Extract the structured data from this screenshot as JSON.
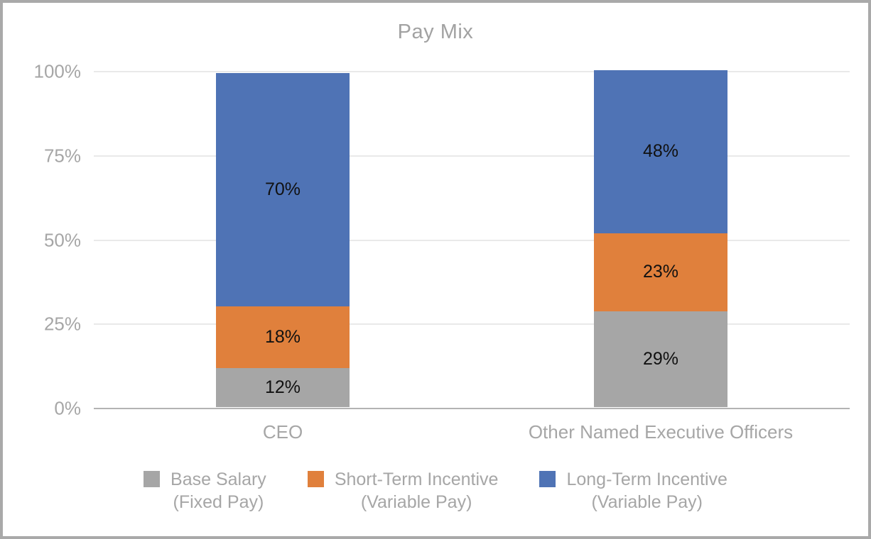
{
  "chart": {
    "title": "Pay Mix"
  },
  "colors": {
    "background": "#ffffff",
    "frame_border": "#a9a9a9",
    "gridline": "#e9e9e9",
    "axis_line": "#b3b3b3",
    "axis_text": "#a6a6a6",
    "title_text": "#a2a2a2",
    "data_label_text": "#111111",
    "base_salary": "#a6a6a6",
    "short_term_incentive": "#e0803c",
    "long_term_incentive": "#4f73b5"
  },
  "chart_data": {
    "type": "bar",
    "stacked": true,
    "title": "Pay Mix",
    "xlabel": "",
    "ylabel": "",
    "ylim": [
      0,
      100
    ],
    "grid": true,
    "y_ticks": [
      "0%",
      "25%",
      "50%",
      "75%",
      "100%"
    ],
    "categories": [
      "CEO",
      "Other Named Executive Officers"
    ],
    "series": [
      {
        "name": "Base Salary (Fixed Pay)",
        "color": "#a6a6a6",
        "values": [
          12,
          29
        ]
      },
      {
        "name": "Short-Term Incentive (Variable Pay)",
        "color": "#e0803c",
        "values": [
          18,
          23
        ]
      },
      {
        "name": "Long-Term Incentive (Variable Pay)",
        "color": "#4f73b5",
        "values": [
          70,
          48
        ]
      }
    ],
    "data_labels": [
      [
        "12%",
        "18%",
        "70%"
      ],
      [
        "29%",
        "23%",
        "48%"
      ]
    ],
    "rendered_heights_pct": [
      [
        11.6,
        18.3,
        69.2
      ],
      [
        28.5,
        23.1,
        48.4
      ]
    ],
    "bar_center_pct": [
      25,
      75
    ],
    "legend_position": "bottom",
    "legend": [
      {
        "line1": "Base Salary",
        "line2": "(Fixed Pay)",
        "color": "#a6a6a6"
      },
      {
        "line1": "Short-Term Incentive",
        "line2": "(Variable Pay)",
        "color": "#e0803c"
      },
      {
        "line1": "Long-Term Incentive",
        "line2": "(Variable Pay)",
        "color": "#4f73b5"
      }
    ]
  }
}
